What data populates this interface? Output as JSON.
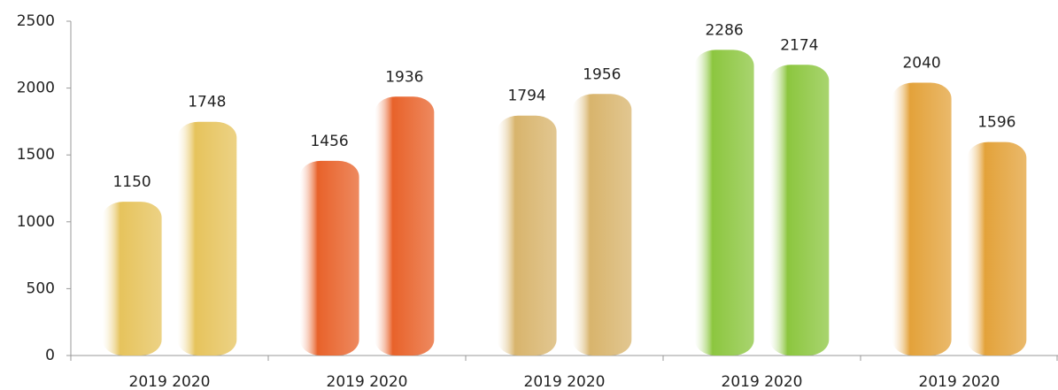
{
  "chart_data": {
    "type": "bar",
    "categories": [
      "2019 2020",
      "2019 2020",
      "2019 2020",
      "2019 2020",
      "2019 2020"
    ],
    "series": [
      {
        "values": [
          1150,
          1456,
          1794,
          2286,
          2040
        ]
      },
      {
        "values": [
          1748,
          1936,
          1956,
          2174,
          1596
        ]
      }
    ],
    "colors": [
      "#e6c35c",
      "#e8622a",
      "#d8b46c",
      "#8cc63f",
      "#e3a23a"
    ],
    "ylim": [
      0,
      2500
    ],
    "yticks": [
      0,
      500,
      1000,
      1500,
      2000,
      2500
    ],
    "grid": false
  }
}
